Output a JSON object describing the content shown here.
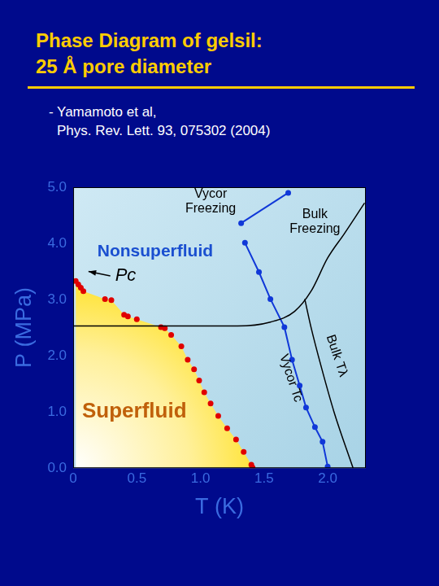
{
  "chart_data": {
    "type": "scatter",
    "title": [
      "Phase Diagram of gelsil:",
      "25 Å pore diameter"
    ],
    "subtitle": [
      "- Yamamoto et al,",
      "Phys. Rev. Lett. 93, 075302 (2004)"
    ],
    "x_label": "T (K)",
    "y_label": "P (MPa)",
    "xlim": [
      0,
      2.3
    ],
    "ylim": [
      0,
      5.0
    ],
    "xticks": [
      0,
      0.5,
      {
        "value": 1,
        "label": "1.0"
      },
      1.5,
      {
        "value": 2,
        "label": "2.0"
      }
    ],
    "yticks": [
      {
        "value": 0,
        "label": "0.0"
      },
      {
        "value": 1,
        "label": "1.0"
      },
      {
        "value": 2,
        "label": "2.0"
      },
      {
        "value": 3,
        "label": "3.0"
      },
      {
        "value": 4,
        "label": "4.0"
      },
      {
        "value": 5,
        "label": "5.0"
      }
    ],
    "grid": false,
    "annotations": [
      "Nonsuperfluid",
      "Pc",
      "Superfluid"
    ],
    "series": [
      {
        "type": "area",
        "color": "#e00000",
        "marker": "circle",
        "line_style": "none",
        "x": [
          0.02,
          0.04,
          0.06,
          0.08,
          0.25,
          0.3,
          0.4,
          0.43,
          0.5,
          0.69,
          0.72,
          0.77,
          0.85,
          0.9,
          0.95,
          0.99,
          1.03,
          1.08,
          1.14,
          1.21,
          1.28,
          1.34,
          1.4,
          1.41
        ],
        "values": [
          3.33,
          3.27,
          3.21,
          3.15,
          3.01,
          2.99,
          2.73,
          2.7,
          2.65,
          2.51,
          2.49,
          2.37,
          2.17,
          1.93,
          1.76,
          1.56,
          1.35,
          1.15,
          0.93,
          0.71,
          0.51,
          0.29,
          0.06,
          0.01
        ]
      },
      {
        "name": "Vycor Freezing",
        "type": "line",
        "color": "#1038d8",
        "marker": "circle",
        "line_style": "solid",
        "x": [
          1.32,
          1.69
        ],
        "values": [
          4.36,
          4.9
        ]
      },
      {
        "name": "Bulk Freezing",
        "type": "line",
        "color": "#000000",
        "marker": "none",
        "line_style": "solid",
        "x": [
          0,
          1.29,
          1.55,
          1.74,
          1.87,
          2.0,
          2.13,
          2.29
        ],
        "values": [
          2.53,
          2.53,
          2.6,
          2.79,
          3.15,
          3.74,
          4.17,
          4.72
        ]
      },
      {
        "name": "Bulk Tλ",
        "type": "line",
        "color": "#000000",
        "marker": "none",
        "line_style": "solid",
        "x": [
          1.82,
          1.87,
          1.95,
          2.05,
          2.2
        ],
        "values": [
          3.01,
          2.5,
          1.8,
          1.0,
          0.0
        ]
      },
      {
        "name": "Vycor Tc",
        "type": "line",
        "color": "#1038d8",
        "marker": "circle",
        "line_style": "solid",
        "x": [
          1.35,
          1.46,
          1.55,
          1.66,
          1.72,
          1.78,
          1.83,
          1.9,
          1.96,
          2.0
        ],
        "values": [
          4.01,
          3.49,
          3.01,
          2.51,
          1.93,
          1.47,
          1.08,
          0.73,
          0.47,
          0.03
        ]
      }
    ]
  }
}
